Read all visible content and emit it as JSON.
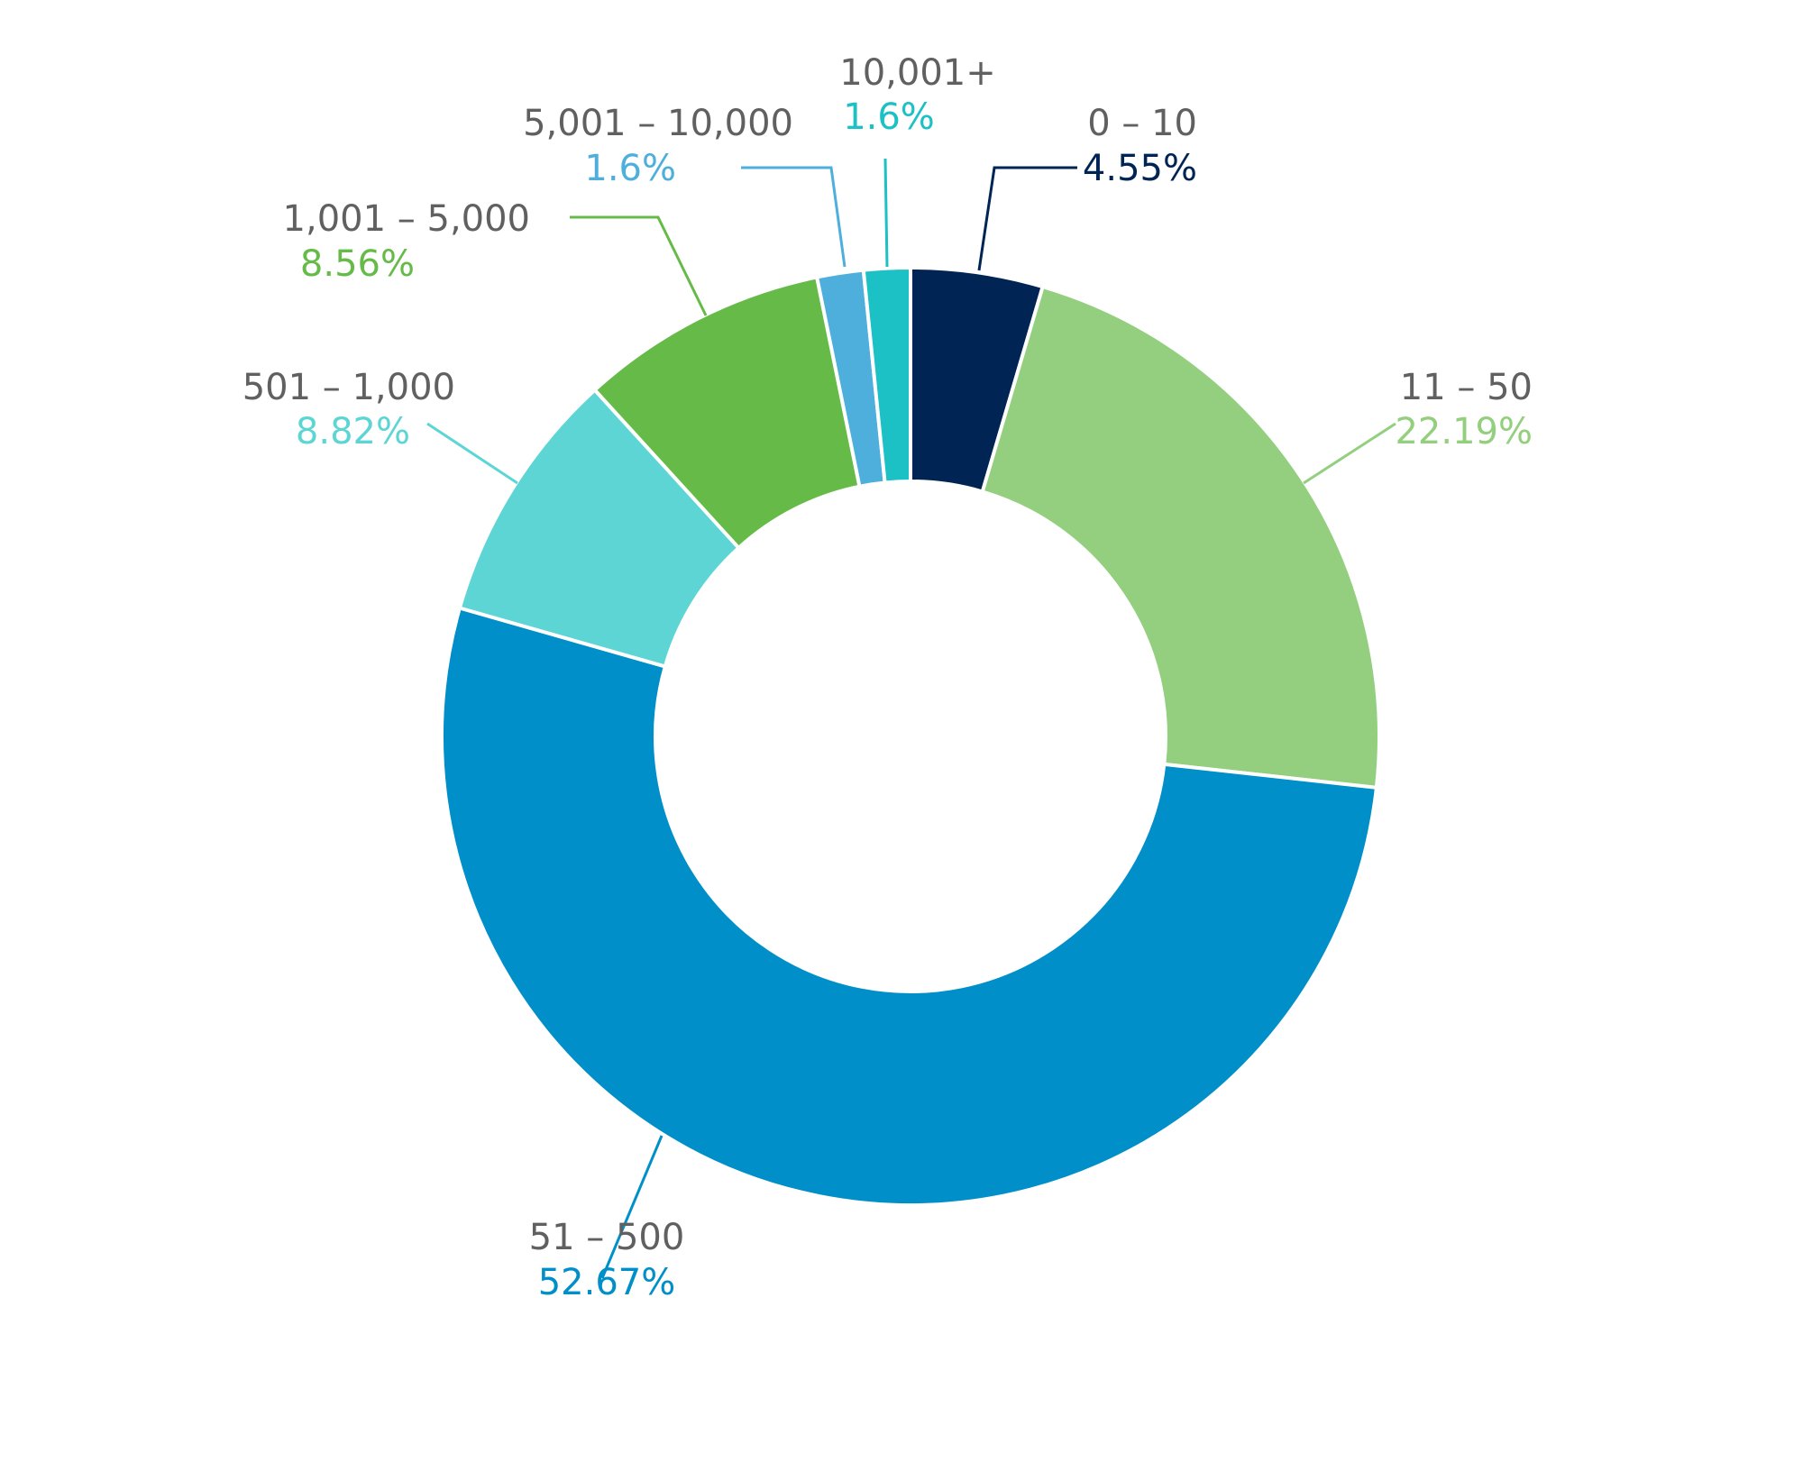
{
  "chart_data": {
    "type": "pie",
    "variant": "donut",
    "categories": [
      "0 – 10",
      "11 – 50",
      "51 – 500",
      "501 – 1,000",
      "1,001 – 5,000",
      "5,001 – 10,000",
      "10,001+"
    ],
    "values": [
      4.55,
      22.19,
      52.67,
      8.82,
      8.56,
      1.6,
      1.6
    ],
    "value_labels": [
      "4.55%",
      "22.19%",
      "52.67%",
      "8.82%",
      "8.56%",
      "1.6%",
      "1.6%"
    ],
    "colors": [
      "#002554",
      "#93cf7e",
      "#008fc9",
      "#5ed5d5",
      "#66bb48",
      "#4fafdc",
      "#1bc1c4"
    ],
    "title": "",
    "legend": "none"
  }
}
